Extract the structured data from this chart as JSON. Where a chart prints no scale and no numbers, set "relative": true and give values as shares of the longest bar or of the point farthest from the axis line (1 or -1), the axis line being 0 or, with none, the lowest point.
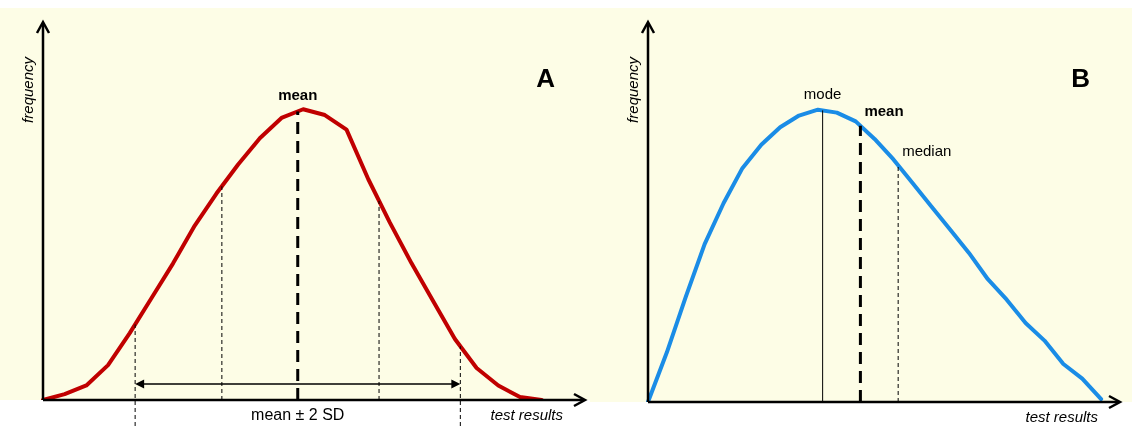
{
  "chart_data": [
    {
      "type": "line",
      "relative": true,
      "xlabel": "test results",
      "ylabel": "frequency",
      "marker": "none",
      "categories": [
        null,
        null,
        null,
        null,
        null,
        null,
        null,
        null,
        null,
        null,
        null,
        null,
        null,
        null,
        null,
        null,
        null,
        null,
        null,
        null,
        null,
        null,
        null,
        null,
        null,
        null
      ],
      "series": [
        {
          "color": "#c00000",
          "values": [
            0,
            0.02,
            0.05,
            0.12,
            0.23,
            0.35,
            0.47,
            0.6,
            0.71,
            0.81,
            0.9,
            0.97,
            1,
            0.98,
            0.93,
            0.76,
            0.61,
            0.47,
            0.34,
            0.21,
            0.11,
            0.05,
            0.01,
            0,
            null,
            null
          ]
        }
      ],
      "annotations": [
        "A",
        "mean",
        "mean ± 2 SD"
      ]
    },
    {
      "type": "line",
      "relative": true,
      "xlabel": "test results",
      "ylabel": "frequency",
      "marker": "none",
      "categories": [
        null,
        null,
        null,
        null,
        null,
        null,
        null,
        null,
        null,
        null,
        null,
        null,
        null,
        null,
        null,
        null,
        null,
        null,
        null,
        null,
        null,
        null,
        null,
        null,
        null,
        null
      ],
      "series": [
        {
          "color": "#1a8ce6",
          "values": [
            0,
            0.17,
            0.36,
            0.54,
            0.68,
            0.8,
            0.88,
            0.94,
            0.98,
            1,
            0.99,
            0.96,
            0.9,
            0.83,
            0.75,
            0.67,
            0.59,
            0.51,
            0.42,
            0.35,
            0.27,
            0.21,
            0.13,
            0.08,
            0.01,
            null
          ]
        }
      ],
      "annotations": [
        "B",
        "mode",
        "mean",
        "median"
      ]
    }
  ]
}
